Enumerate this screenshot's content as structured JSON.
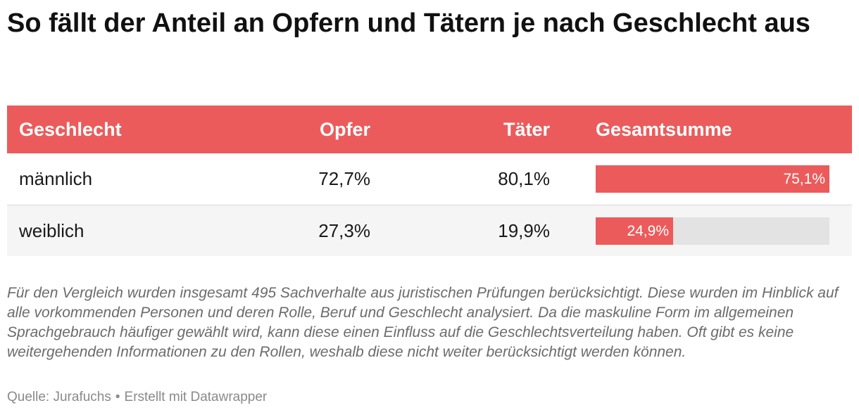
{
  "title": "So fällt der Anteil an Opfern und Tätern je nach Geschlecht aus",
  "columns": {
    "gender": "Geschlecht",
    "victims": "Opfer",
    "offenders": "Täter",
    "total": "Gesamtsumme"
  },
  "rows": [
    {
      "gender": "männlich",
      "victims": "72,7%",
      "offenders": "80,1%",
      "total": "75,1%"
    },
    {
      "gender": "weiblich",
      "victims": "27,3%",
      "offenders": "19,9%",
      "total": "24,9%"
    }
  ],
  "note": "Für den Vergleich wurden insgesamt 495 Sachverhalte aus juristischen Prüfungen berücksichtigt. Diese wurden im Hinblick auf alle vorkommenden Personen und deren Rolle, Beruf und Geschlecht analysiert. Da die maskuline Form im allgemeinen Sprachgebrauch häufiger gewählt wird, kann diese einen Einfluss auf die Geschlechtsverteilung haben. Oft gibt es keine weitergehenden Informationen zu den Rollen, weshalb diese nicht weiter berücksichtigt werden können.",
  "source": {
    "text": "Quelle: Jurafuchs",
    "separator": "•",
    "credit": "Erstellt mit Datawrapper"
  },
  "colors": {
    "accent": "#ec5b5b",
    "bar_track": "#e3e3e3",
    "row_alt": "#f5f5f5"
  },
  "chart_data": {
    "type": "table",
    "columns": [
      "Geschlecht",
      "Opfer",
      "Täter",
      "Gesamtsumme"
    ],
    "categories": [
      "männlich",
      "weiblich"
    ],
    "series": [
      {
        "name": "Opfer",
        "values": [
          72.7,
          27.3
        ]
      },
      {
        "name": "Täter",
        "values": [
          80.1,
          19.9
        ]
      },
      {
        "name": "Gesamtsumme",
        "values": [
          75.1,
          24.9
        ]
      }
    ],
    "bar_column": "Gesamtsumme",
    "bar_range": [
      0,
      100
    ]
  }
}
